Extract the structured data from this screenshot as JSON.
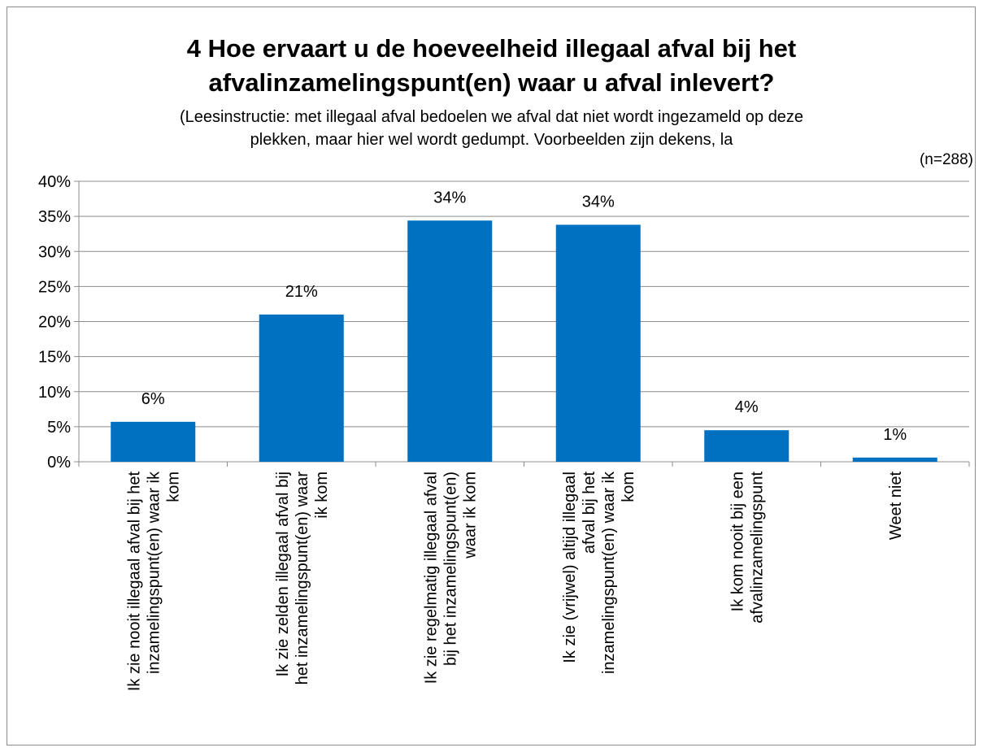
{
  "chart_data": {
    "type": "bar",
    "title_lines": [
      "4 Hoe ervaart u de hoeveelheid illegaal afval bij het",
      "afvalinzamelingspunt(en) waar u afval inlevert?"
    ],
    "subtitle_lines": [
      "(Leesinstructie: met illegaal afval bedoelen we afval dat niet wordt ingezameld op deze",
      "plekken, maar hier wel wordt gedumpt. Voorbeelden zijn dekens, la"
    ],
    "note": "(n=288)",
    "categories": [
      [
        "Ik zie nooit illegaal afval bij het",
        "inzamelingspunt(en) waar ik",
        "kom"
      ],
      [
        "Ik zie zelden illegaal afval bij",
        "het inzamelingspunt(en) waar",
        "ik kom"
      ],
      [
        "Ik zie regelmatig illegaal afval",
        "bij het inzamelingspunt(en)",
        "waar ik kom"
      ],
      [
        "Ik zie (vrijwel) altijd illegaal",
        "afval bij het",
        "inzamelingspunt(en) waar ik",
        "kom"
      ],
      [
        "Ik kom nooit bij een",
        "afvalinzamelingspunt"
      ],
      [
        "Weet niet"
      ]
    ],
    "values": [
      5.7,
      21.0,
      34.4,
      33.8,
      4.5,
      0.6
    ],
    "data_labels": [
      "6%",
      "21%",
      "34%",
      "34%",
      "4%",
      "1%"
    ],
    "ylim": [
      0,
      40
    ],
    "yticks": [
      "0%",
      "5%",
      "10%",
      "15%",
      "20%",
      "25%",
      "30%",
      "35%",
      "40%"
    ],
    "grid": true,
    "bar_color": "#0070C0",
    "grid_color": "#8c8c8c"
  }
}
